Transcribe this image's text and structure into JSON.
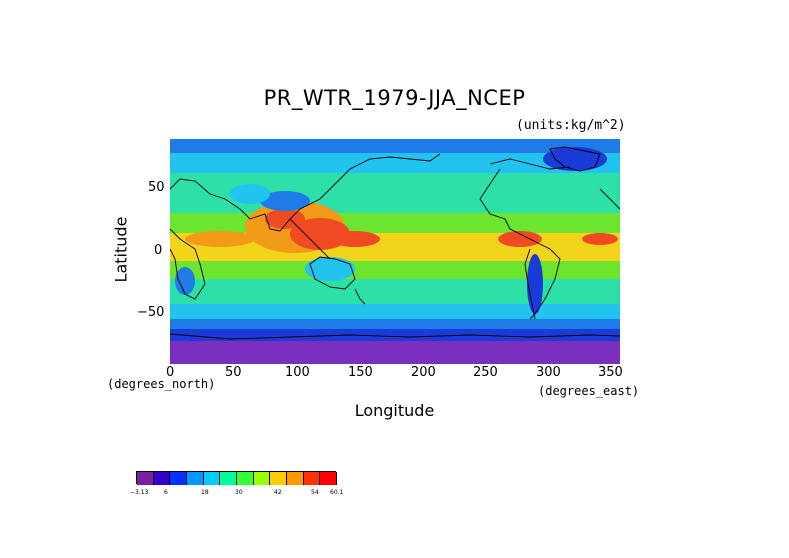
{
  "map": {
    "title": "PR_WTR_1979-JJA_NCEP",
    "units": "(units:kg/m^2)",
    "xlabel": "Longitude",
    "ylabel": "Latitude",
    "x_unit_left": "(degrees_north)",
    "x_unit_right": "(degrees_east)",
    "xticks": [
      "0",
      "50",
      "100",
      "150",
      "200",
      "250",
      "300",
      "350"
    ],
    "yticks": [
      "50",
      "0",
      "−50"
    ],
    "colorbar": {
      "labels": [
        "−3.13",
        "6",
        "18",
        "30",
        "42",
        "54",
        "60.1"
      ],
      "colors": [
        "#7a1fa2",
        "#3300cc",
        "#0033ff",
        "#0099ff",
        "#00ccff",
        "#00ff99",
        "#33ff33",
        "#99ff00",
        "#ffcc00",
        "#ff9900",
        "#ff3300",
        "#ff0000"
      ]
    },
    "colors": {
      "polar": "#7b2fbf",
      "deep_blue": "#1a3bd8",
      "blue": "#1e7be8",
      "light_blue": "#22c3ef",
      "cyan_green": "#2de0a8",
      "green": "#6de42e",
      "yellow": "#f2d41a",
      "orange": "#f39a19",
      "red": "#ef4a22"
    }
  }
}
